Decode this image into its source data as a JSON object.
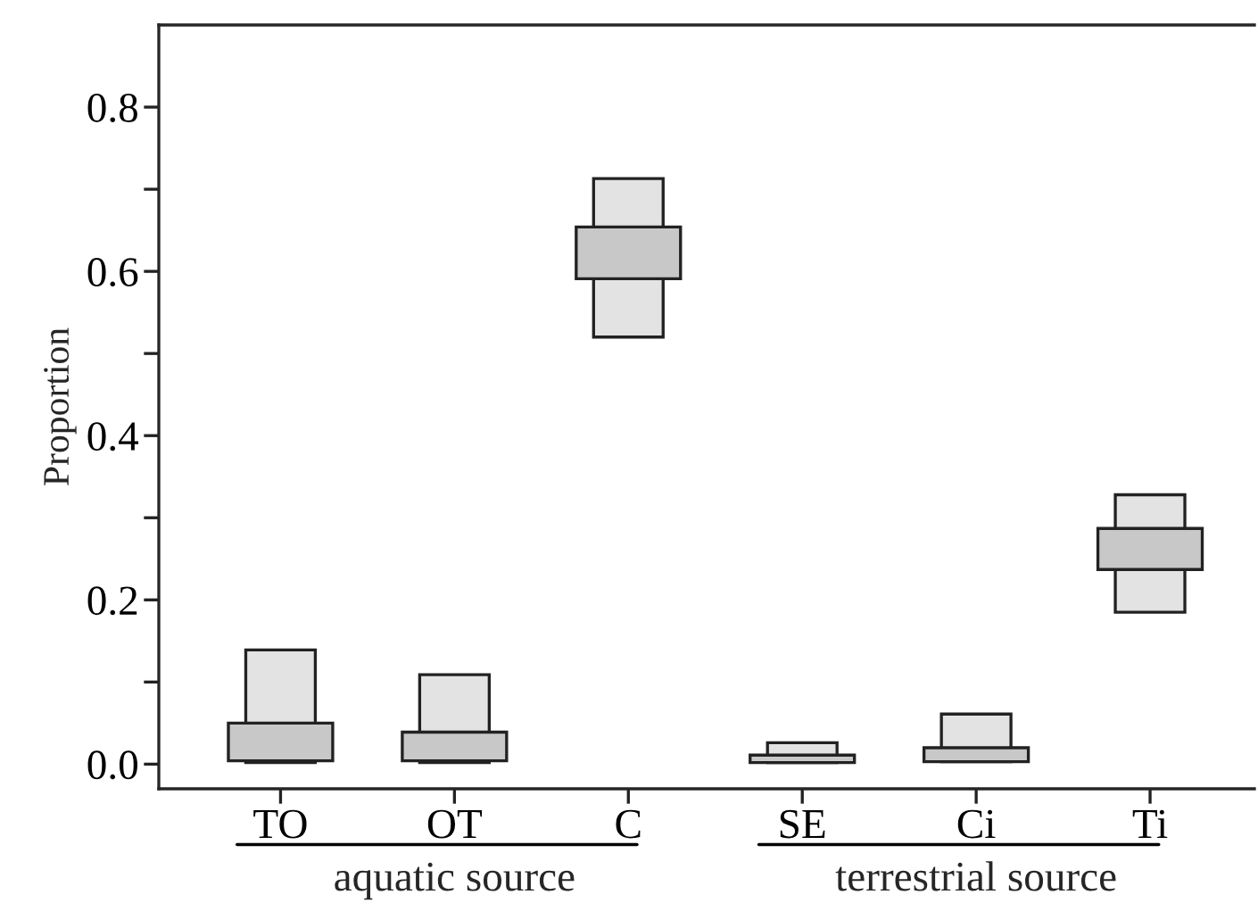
{
  "chart_data": {
    "type": "bar",
    "ylabel": "Proportion",
    "categories": [
      "TO",
      "OT",
      "C",
      "SE",
      "Ci",
      "Ti"
    ],
    "series": [
      {
        "color": "#e3e3e3",
        "base": [
          0.002,
          0.002,
          0.52,
          0.002,
          0.003,
          0.185
        ],
        "values": [
          0.137,
          0.107,
          0.193,
          0.024,
          0.058,
          0.143
        ]
      },
      {
        "color": "#c8c8c8",
        "base": [
          0.004,
          0.004,
          0.591,
          0.002,
          0.003,
          0.237
        ],
        "values": [
          0.046,
          0.035,
          0.063,
          0.009,
          0.017,
          0.05
        ]
      }
    ],
    "ylim": [
      -0.03,
      0.9
    ],
    "yticks": [
      {
        "value": 0,
        "label": "0.0"
      },
      {
        "value": 0.1,
        "label": null
      },
      {
        "value": 0.2,
        "label": "0.2"
      },
      {
        "value": 0.3,
        "label": null
      },
      {
        "value": 0.4,
        "label": "0.4"
      },
      {
        "value": 0.5,
        "label": null
      },
      {
        "value": 0.6,
        "label": "0.6"
      },
      {
        "value": 0.7,
        "label": null
      },
      {
        "value": 0.8,
        "label": "0.8"
      }
    ],
    "grid": false,
    "legend": false,
    "annotations": [
      "aquatic source",
      "terrestrial source"
    ]
  }
}
